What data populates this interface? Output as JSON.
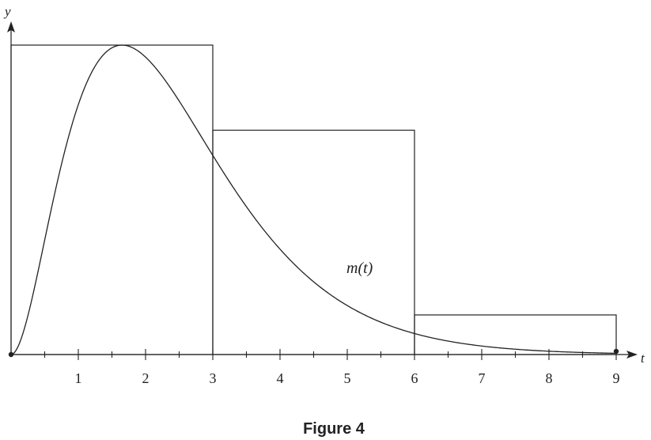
{
  "diagram": {
    "y_axis_label": "y",
    "x_axis_label": "t",
    "curve_label": "m(t)",
    "caption": "Figure 4",
    "x_ticks": [
      {
        "value": 1,
        "label": "1"
      },
      {
        "value": 2,
        "label": "2"
      },
      {
        "value": 3,
        "label": "3"
      },
      {
        "value": 4,
        "label": "4"
      },
      {
        "value": 5,
        "label": "5"
      },
      {
        "value": 6,
        "label": "6"
      },
      {
        "value": 7,
        "label": "7"
      },
      {
        "value": 8,
        "label": "8"
      },
      {
        "value": 9,
        "label": "9"
      }
    ],
    "minor_tick_step": 0.5,
    "x_range": [
      0,
      9
    ],
    "rectangles": [
      {
        "t_start": 0,
        "t_end": 3,
        "height_relative": 1.0
      },
      {
        "t_start": 3,
        "t_end": 6,
        "height_relative": 0.725
      },
      {
        "t_start": 6,
        "t_end": 9,
        "height_relative": 0.128
      }
    ],
    "endpoints": [
      0,
      9
    ],
    "line_color": "#222222"
  }
}
